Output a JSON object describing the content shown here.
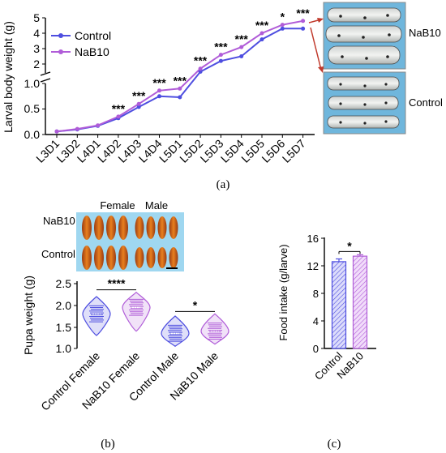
{
  "panel_a": {
    "caption": "(a)",
    "photo_labels": [
      "NaB10",
      "Control"
    ]
  },
  "panel_b": {
    "caption": "(b)",
    "photo_col_labels": [
      "Female",
      "Male"
    ],
    "photo_row_labels": [
      "NaB10",
      "Control"
    ]
  },
  "panel_c": {
    "caption": "(c)"
  },
  "colors": {
    "control": "#4e4ee0",
    "nab10": "#b05cd8",
    "photo_bg": "#6fb6dc"
  },
  "chart_data": [
    {
      "type": "line",
      "ylabel": "Larval body weight (g)",
      "x": [
        "L3D1",
        "L3D2",
        "L4D1",
        "L4D2",
        "L4D3",
        "L4D4",
        "L5D1",
        "L5D2",
        "L5D3",
        "L5D4",
        "L5D5",
        "L5D6",
        "L5D7"
      ],
      "series": [
        {
          "name": "Control",
          "values": [
            0.06,
            0.1,
            0.17,
            0.32,
            0.54,
            0.75,
            0.73,
            1.5,
            2.2,
            2.5,
            3.6,
            4.3,
            4.3
          ]
        },
        {
          "name": "NaB10",
          "values": [
            0.06,
            0.11,
            0.18,
            0.35,
            0.6,
            0.86,
            0.9,
            1.7,
            2.6,
            3.1,
            4.0,
            4.55,
            4.8
          ]
        }
      ],
      "significance": [
        "",
        "",
        "",
        "***",
        "***",
        "***",
        "***",
        "***",
        "***",
        "***",
        "***",
        "*",
        "***"
      ],
      "y_break": true,
      "yticks_lower": [
        "0.0",
        "0.5",
        "1.0"
      ],
      "yticks_upper": [
        "2",
        "3",
        "4",
        "5"
      ],
      "legend": "top-left"
    },
    {
      "type": "violin",
      "ylabel": "Pupa weight (g)",
      "categories": [
        "Control Female",
        "NaB10 Female",
        "Control Male",
        "NaB10 Male"
      ],
      "medians": [
        1.8,
        1.95,
        1.35,
        1.4
      ],
      "ranges": [
        [
          1.3,
          2.2
        ],
        [
          1.4,
          2.3
        ],
        [
          1.05,
          1.75
        ],
        [
          1.1,
          1.8
        ]
      ],
      "significance": [
        {
          "groups": [
            0,
            1
          ],
          "label": "****"
        },
        {
          "groups": [
            2,
            3
          ],
          "label": "*"
        }
      ],
      "ylim": [
        1.0,
        2.5
      ],
      "yticks": [
        "1.0",
        "1.5",
        "2.0",
        "2.5"
      ]
    },
    {
      "type": "bar",
      "ylabel": "Food intake (g/larve)",
      "categories": [
        "Control",
        "NaB10"
      ],
      "values": [
        12.6,
        13.4
      ],
      "errors": [
        0.4,
        0.2
      ],
      "significance": "*",
      "ylim": [
        0,
        16
      ],
      "yticks": [
        "0",
        "4",
        "8",
        "12",
        "16"
      ]
    }
  ]
}
